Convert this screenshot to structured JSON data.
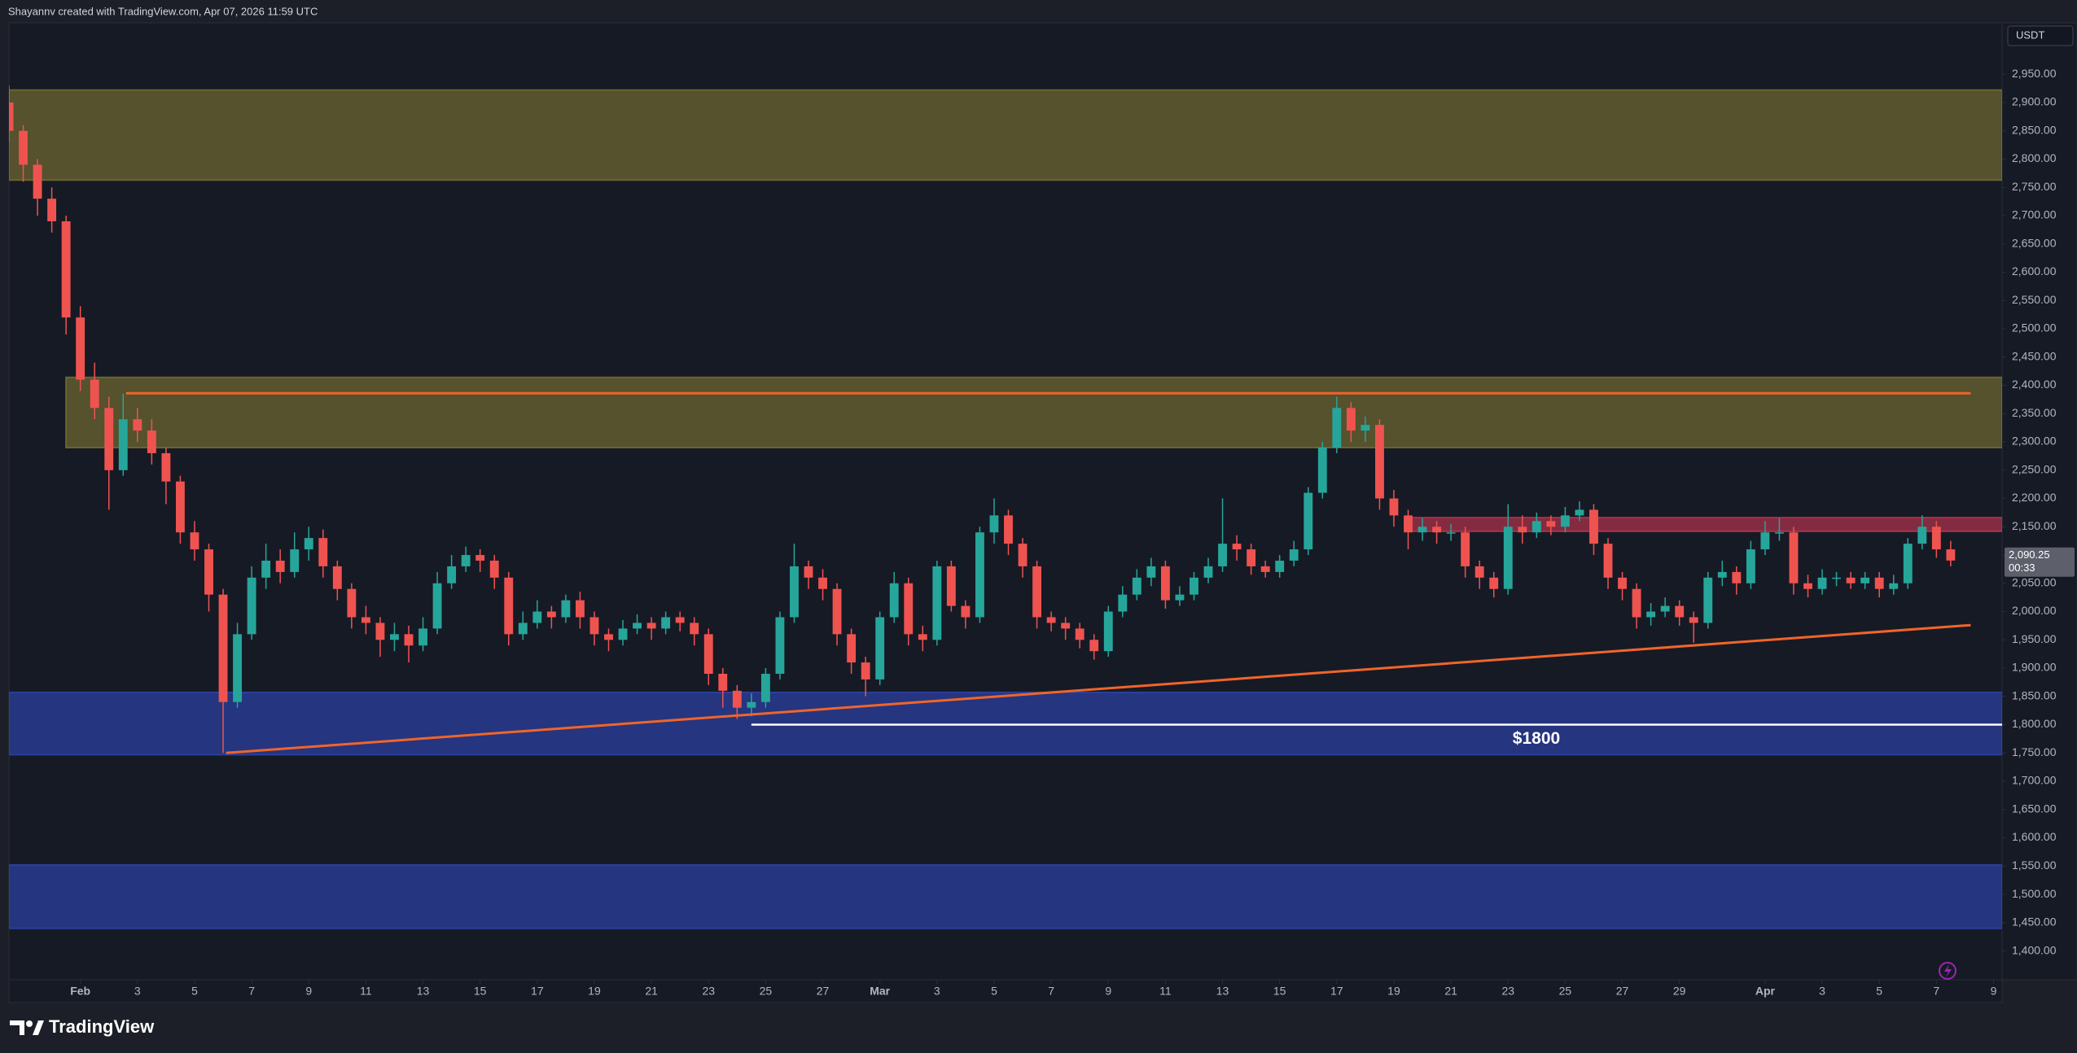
{
  "header": "Shayannv created with TradingView.com, Apr 07, 2026 11:59 UTC",
  "brand": "TradingView",
  "chart_data": {
    "type": "candlestick",
    "currency": "USDT",
    "x": [
      -1.5,
      -1,
      -0.5,
      0,
      0.5,
      1,
      1.5,
      2,
      2.5,
      3,
      3.5,
      4,
      4.5,
      5,
      5.5,
      6,
      6.5,
      7,
      7.5,
      8,
      8.5,
      9,
      9.5,
      10,
      10.5,
      11,
      11.5,
      12,
      12.5,
      13,
      13.5,
      14,
      14.5,
      15,
      15.5,
      16,
      16.5,
      17,
      17.5,
      18,
      18.5,
      19,
      19.5,
      20,
      20.5,
      21,
      21.5,
      22,
      22.5,
      23,
      23.5,
      24,
      24.5,
      25,
      25.5,
      26,
      26.5,
      27,
      27.5,
      28,
      28.5,
      29,
      29.5,
      30,
      30.5,
      31,
      31.5,
      32,
      32.5,
      33,
      33.5,
      34,
      34.5,
      35,
      35.5,
      36,
      36.5,
      37,
      37.5,
      38,
      38.5,
      39,
      39.5,
      40,
      40.5,
      41,
      41.5,
      42,
      42.5,
      43,
      43.5,
      44,
      44.5,
      45,
      45.5,
      46,
      46.5,
      47,
      47.5,
      48,
      48.5,
      49,
      49.5,
      50,
      50.5,
      51,
      51.5,
      52,
      52.5,
      53,
      53.5,
      54,
      54.5,
      55,
      55.5,
      56,
      56.5,
      57,
      57.5,
      58,
      58.5,
      59,
      59.5,
      60,
      60.5,
      61,
      61.5,
      62,
      62.5,
      63,
      63.5,
      64,
      64.5,
      65,
      65.5,
      66,
      66.5
    ],
    "open": [
      2900,
      2850,
      2790,
      2730,
      2690,
      2520,
      2410,
      2360,
      2250,
      2340,
      2320,
      2280,
      2230,
      2140,
      2110,
      2030,
      1840,
      1960,
      2060,
      2090,
      2070,
      2110,
      2130,
      2080,
      2040,
      1990,
      1980,
      1950,
      1960,
      1940,
      1970,
      2050,
      2080,
      2100,
      2090,
      2060,
      1960,
      1980,
      2000,
      1990,
      2020,
      1990,
      1960,
      1950,
      1970,
      1980,
      1970,
      1990,
      1980,
      1960,
      1890,
      1860,
      1830,
      1840,
      1890,
      1990,
      2080,
      2060,
      2040,
      1960,
      1910,
      1880,
      1990,
      2050,
      1960,
      1950,
      2080,
      2010,
      1990,
      2140,
      2170,
      2120,
      2080,
      1990,
      1980,
      1970,
      1950,
      1930,
      2000,
      2030,
      2060,
      2080,
      2020,
      2030,
      2060,
      2080,
      2120,
      2110,
      2080,
      2070,
      2090,
      2110,
      2210,
      2290,
      2360,
      2320,
      2330,
      2200,
      2170,
      2140,
      2150,
      2140,
      2140,
      2080,
      2060,
      2040,
      2150,
      2140,
      2160,
      2150,
      2170,
      2180,
      2120,
      2060,
      2040,
      1990,
      2000,
      2010,
      1990,
      1980,
      2060,
      2070,
      2050,
      2110,
      2140,
      2140,
      2050,
      2040,
      2060,
      2060,
      2050,
      2060,
      2040,
      2050,
      2120,
      2150,
      2110
    ],
    "high": [
      2930,
      2860,
      2800,
      2750,
      2700,
      2540,
      2440,
      2380,
      2385,
      2360,
      2340,
      2290,
      2240,
      2160,
      2120,
      2040,
      1980,
      2080,
      2120,
      2110,
      2140,
      2150,
      2145,
      2090,
      2050,
      2010,
      1990,
      1980,
      1975,
      1990,
      2070,
      2100,
      2115,
      2110,
      2100,
      2070,
      2000,
      2020,
      2010,
      2030,
      2035,
      2000,
      1970,
      1985,
      1995,
      1990,
      2000,
      2000,
      1990,
      1970,
      1900,
      1870,
      1855,
      1900,
      2000,
      2120,
      2090,
      2075,
      2050,
      1970,
      1920,
      2000,
      2070,
      2060,
      1975,
      2090,
      2090,
      2020,
      2150,
      2200,
      2180,
      2130,
      2090,
      2000,
      1990,
      1980,
      1960,
      2010,
      2045,
      2075,
      2095,
      2090,
      2045,
      2070,
      2095,
      2200,
      2135,
      2120,
      2090,
      2100,
      2125,
      2220,
      2300,
      2380,
      2370,
      2345,
      2340,
      2215,
      2180,
      2165,
      2160,
      2155,
      2150,
      2090,
      2070,
      2190,
      2170,
      2175,
      2170,
      2185,
      2195,
      2190,
      2130,
      2070,
      2050,
      2015,
      2025,
      2020,
      2000,
      2070,
      2090,
      2080,
      2125,
      2160,
      2165,
      2150,
      2065,
      2075,
      2070,
      2070,
      2070,
      2070,
      2065,
      2130,
      2170,
      2160,
      2125
    ],
    "low": [
      2830,
      2760,
      2700,
      2670,
      2490,
      2390,
      2340,
      2180,
      2240,
      2300,
      2260,
      2190,
      2120,
      2090,
      2000,
      1750,
      1830,
      1950,
      2040,
      2050,
      2060,
      2090,
      2060,
      2020,
      1970,
      1960,
      1920,
      1930,
      1910,
      1930,
      1960,
      2040,
      2070,
      2070,
      2040,
      1940,
      1950,
      1970,
      1970,
      1980,
      1970,
      1940,
      1930,
      1940,
      1960,
      1950,
      1960,
      1965,
      1940,
      1870,
      1830,
      1810,
      1815,
      1830,
      1880,
      1980,
      2040,
      2020,
      1940,
      1890,
      1850,
      1870,
      1980,
      1940,
      1930,
      1940,
      2000,
      1970,
      1980,
      2120,
      2100,
      2060,
      1970,
      1965,
      1950,
      1935,
      1915,
      1920,
      1990,
      2020,
      2045,
      2005,
      2010,
      2020,
      2050,
      2070,
      2090,
      2065,
      2060,
      2060,
      2080,
      2100,
      2200,
      2280,
      2300,
      2300,
      2180,
      2150,
      2110,
      2125,
      2120,
      2125,
      2060,
      2040,
      2025,
      2030,
      2120,
      2130,
      2135,
      2140,
      2160,
      2100,
      2040,
      2020,
      1970,
      1975,
      1990,
      1975,
      1945,
      1970,
      2045,
      2030,
      2040,
      2100,
      2125,
      2030,
      2025,
      2030,
      2045,
      2040,
      2040,
      2025,
      2030,
      2040,
      2110,
      2095,
      2080
    ],
    "close": [
      2850,
      2790,
      2730,
      2690,
      2520,
      2410,
      2360,
      2250,
      2340,
      2320,
      2280,
      2230,
      2140,
      2110,
      2030,
      1840,
      1960,
      2060,
      2090,
      2070,
      2110,
      2130,
      2080,
      2040,
      1990,
      1980,
      1950,
      1960,
      1940,
      1970,
      2050,
      2080,
      2100,
      2090,
      2060,
      1960,
      1980,
      2000,
      1990,
      2020,
      1990,
      1960,
      1950,
      1970,
      1980,
      1970,
      1990,
      1980,
      1960,
      1890,
      1860,
      1830,
      1840,
      1890,
      1990,
      2080,
      2060,
      2040,
      1960,
      1910,
      1880,
      1990,
      2050,
      1960,
      1950,
      2080,
      2010,
      1990,
      2140,
      2170,
      2120,
      2080,
      1990,
      1980,
      1970,
      1950,
      1930,
      2000,
      2030,
      2060,
      2080,
      2020,
      2030,
      2060,
      2080,
      2120,
      2110,
      2080,
      2070,
      2090,
      2110,
      2210,
      2290,
      2360,
      2320,
      2330,
      2200,
      2170,
      2140,
      2150,
      2140,
      2140,
      2080,
      2060,
      2040,
      2150,
      2140,
      2160,
      2150,
      2170,
      2180,
      2120,
      2060,
      2040,
      1990,
      2000,
      2010,
      1990,
      1980,
      2060,
      2070,
      2050,
      2110,
      2140,
      2140,
      2050,
      2040,
      2060,
      2060,
      2050,
      2060,
      2040,
      2050,
      2120,
      2150,
      2110,
      2090.25
    ],
    "up_color": "#26a69a",
    "down_color": "#ef5350",
    "xlim": [
      -1.5,
      68.3
    ],
    "xticks": [
      {
        "value": 1,
        "label": "Feb"
      },
      3,
      5,
      7,
      9,
      11,
      13,
      15,
      17,
      19,
      21,
      23,
      25,
      27,
      {
        "value": 29,
        "label": "Mar"
      },
      {
        "value": 31,
        "label": "3"
      },
      {
        "value": 33,
        "label": "5"
      },
      {
        "value": 35,
        "label": "7"
      },
      {
        "value": 37,
        "label": "9"
      },
      {
        "value": 39,
        "label": "11"
      },
      {
        "value": 41,
        "label": "13"
      },
      {
        "value": 43,
        "label": "15"
      },
      {
        "value": 45,
        "label": "17"
      },
      {
        "value": 47,
        "label": "19"
      },
      {
        "value": 49,
        "label": "21"
      },
      {
        "value": 51,
        "label": "23"
      },
      {
        "value": 53,
        "label": "25"
      },
      {
        "value": 55,
        "label": "27"
      },
      {
        "value": 57,
        "label": "29"
      },
      {
        "value": 60,
        "label": "Apr"
      },
      {
        "value": 62,
        "label": "3"
      },
      {
        "value": 64,
        "label": "5"
      },
      {
        "value": 66,
        "label": "7"
      },
      {
        "value": 68,
        "label": "9"
      }
    ],
    "ylim": [
      1349,
      3041
    ],
    "yticks": [
      {
        "value": 1400,
        "label": "1,400.00"
      },
      {
        "value": 1450,
        "label": "1,450.00"
      },
      {
        "value": 1500,
        "label": "1,500.00"
      },
      {
        "value": 1550,
        "label": "1,550.00"
      },
      {
        "value": 1600,
        "label": "1,600.00"
      },
      {
        "value": 1650,
        "label": "1,650.00"
      },
      {
        "value": 1700,
        "label": "1,700.00"
      },
      {
        "value": 1750,
        "label": "1,750.00"
      },
      {
        "value": 1800,
        "label": "1,800.00"
      },
      {
        "value": 1850,
        "label": "1,850.00"
      },
      {
        "value": 1900,
        "label": "1,900.00"
      },
      {
        "value": 1950,
        "label": "1,950.00"
      },
      {
        "value": 2000,
        "label": "2,000.00"
      },
      {
        "value": 2050,
        "label": "2,050.00"
      },
      {
        "value": 2100,
        "label": "2,100.00"
      },
      {
        "value": 2150,
        "label": "2,150.00"
      },
      {
        "value": 2200,
        "label": "2,200.00"
      },
      {
        "value": 2250,
        "label": "2,250.00"
      },
      {
        "value": 2300,
        "label": "2,300.00"
      },
      {
        "value": 2350,
        "label": "2,350.00"
      },
      {
        "value": 2400,
        "label": "2,400.00"
      },
      {
        "value": 2450,
        "label": "2,450.00"
      },
      {
        "value": 2500,
        "label": "2,500.00"
      },
      {
        "value": 2550,
        "label": "2,550.00"
      },
      {
        "value": 2600,
        "label": "2,600.00"
      },
      {
        "value": 2650,
        "label": "2,650.00"
      },
      {
        "value": 2700,
        "label": "2,700.00"
      },
      {
        "value": 2750,
        "label": "2,750.00"
      },
      {
        "value": 2800,
        "label": "2,800.00"
      },
      {
        "value": 2850,
        "label": "2,850.00"
      },
      {
        "value": 2900,
        "label": "2,900.00"
      },
      {
        "value": 2950,
        "label": "2,950.00"
      }
    ],
    "last_price": {
      "value": 2090.25,
      "label": "2,090.25"
    },
    "countdown": "00:33",
    "zones": [
      {
        "from": 2763,
        "to": 2922,
        "color": "#6b6530"
      },
      {
        "from": 2290,
        "to": 2414,
        "x_start": 0.5,
        "color": "#6b6530"
      },
      {
        "from": 2142,
        "to": 2166,
        "x_start": 47.4,
        "color": "#a8324a"
      },
      {
        "from": 1747,
        "to": 1857,
        "color": "#2b3f9e"
      },
      {
        "from": 1440,
        "to": 1552,
        "color": "#2b3f9e"
      }
    ],
    "lines": [
      {
        "x": [
          2.6,
          67.2
        ],
        "y": [
          2386,
          2386
        ],
        "color": "#f0652a"
      },
      {
        "x": [
          6.1,
          67.2
        ],
        "y": [
          1750,
          1976
        ],
        "color": "#f0652a"
      }
    ],
    "levels": [
      {
        "value": 1800,
        "label": "$1800",
        "x_start": 24.5,
        "color": "#ffffff"
      }
    ]
  }
}
